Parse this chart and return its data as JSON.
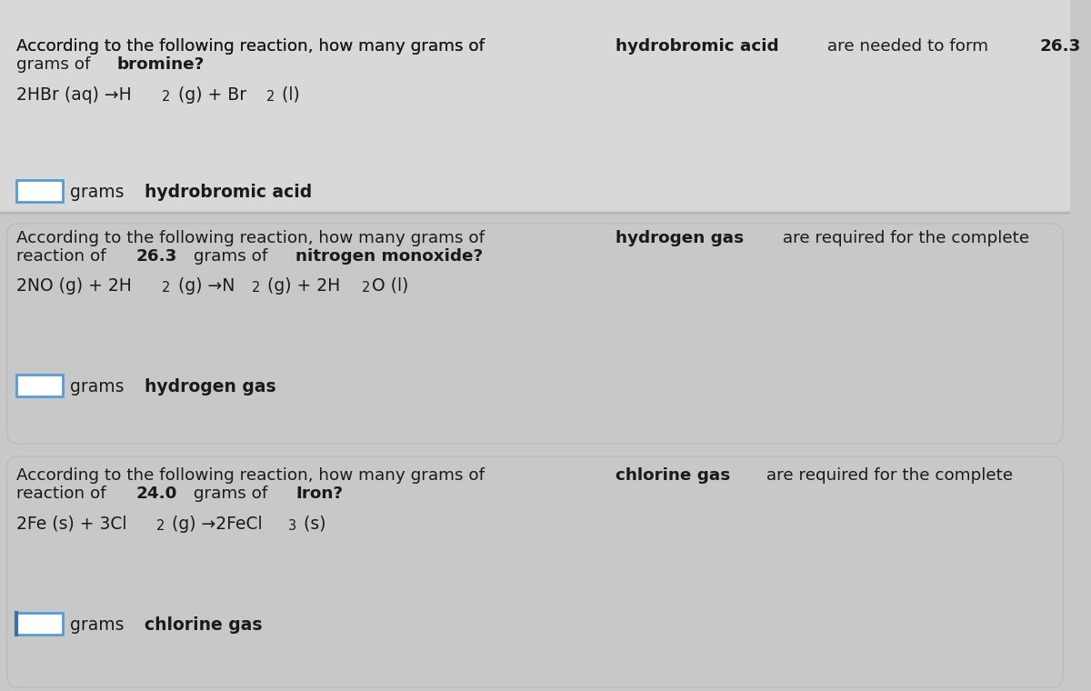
{
  "bg_color": "#c8c8c8",
  "section1_bg": "#d8d8d8",
  "section2_bg": "#c0c0c0",
  "section3_bg": "#c0c0c0",
  "box_border_color": "#5b9bd5",
  "box_fill_color": "#ffffff",
  "text_color": "#1a1a1a",
  "sections": [
    {
      "question_normal": "According to the following reaction, how many grams of ",
      "question_bold": "hydrobromic acid",
      "question_normal2": " are needed to form ",
      "question_bold2": "26.3",
      "question_normal3": "\ngrams of ",
      "question_bold3": "bromine?",
      "equation_parts": [
        {
          "text": "2HBr (aq) ",
          "bold": false
        },
        {
          "text": "→",
          "bold": false
        },
        {
          "text": "H",
          "bold": false
        },
        {
          "text": "2",
          "sub": true
        },
        {
          "text": " (g) + Br",
          "bold": false
        },
        {
          "text": "2",
          "sub": true
        },
        {
          "text": " (l)",
          "bold": false
        }
      ],
      "answer_label_normal": "grams ",
      "answer_label_bold": "hydrobromic acid"
    },
    {
      "question_normal": "According to the following reaction, how many grams of ",
      "question_bold": "hydrogen gas",
      "question_normal2": " are required for the complete\nreaction of ",
      "question_bold2": "26.3",
      "question_normal3": " grams of ",
      "question_bold3": "nitrogen monoxide?",
      "equation_parts": [
        {
          "text": "2NO (g) + 2H",
          "bold": false
        },
        {
          "text": "2",
          "sub": true
        },
        {
          "text": " (g) →N",
          "bold": false
        },
        {
          "text": "2",
          "sub": true
        },
        {
          "text": " (g) + 2H",
          "bold": false
        },
        {
          "text": "2",
          "sub": true
        },
        {
          "text": "O (l)",
          "bold": false
        }
      ],
      "answer_label_normal": "grams ",
      "answer_label_bold": "hydrogen gas"
    },
    {
      "question_normal": "According to the following reaction, how many grams of ",
      "question_bold": "chlorine gas",
      "question_normal2": " are required for the complete\nreaction of ",
      "question_bold2": "24.0",
      "question_normal3": " grams of ",
      "question_bold3": "Iron?",
      "equation_parts": [
        {
          "text": "2Fe (s) + 3Cl",
          "bold": false
        },
        {
          "text": "2",
          "sub": true
        },
        {
          "text": " (g) →2FeCl",
          "bold": false
        },
        {
          "text": "3",
          "sub": true
        },
        {
          "text": " (s)",
          "bold": false
        }
      ],
      "answer_label_normal": "grams ",
      "answer_label_bold": "chlorine gas"
    }
  ]
}
